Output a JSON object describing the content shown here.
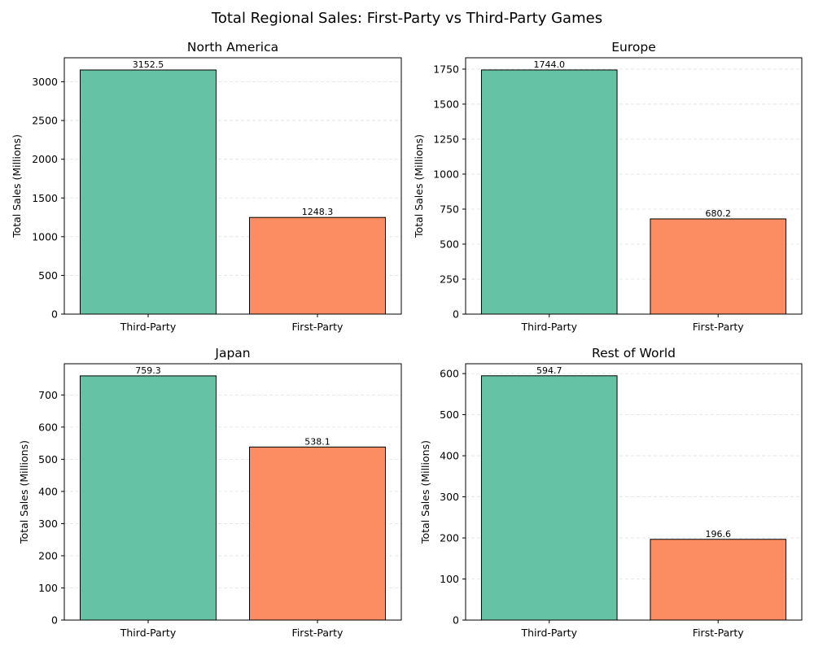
{
  "figure": {
    "title": "Total Regional Sales: First-Party vs Third-Party Games"
  },
  "chart_data": [
    {
      "type": "bar",
      "title": "North America",
      "categories": [
        "Third-Party",
        "First-Party"
      ],
      "values": [
        3152.5,
        1248.3
      ],
      "value_labels": [
        "3152.5",
        "1248.3"
      ],
      "colors": [
        "#66c2a5",
        "#fc8d62"
      ],
      "xlabel": "",
      "ylabel": "Total Sales (Millions)",
      "ylim": [
        0,
        3310
      ],
      "yticks": [
        0,
        500,
        1000,
        1500,
        2000,
        2500,
        3000
      ],
      "grid": "y-dashed"
    },
    {
      "type": "bar",
      "title": "Europe",
      "categories": [
        "Third-Party",
        "First-Party"
      ],
      "values": [
        1744.0,
        680.2
      ],
      "value_labels": [
        "1744.0",
        "680.2"
      ],
      "colors": [
        "#66c2a5",
        "#fc8d62"
      ],
      "xlabel": "",
      "ylabel": "Total Sales (Millions)",
      "ylim": [
        0,
        1831
      ],
      "yticks": [
        0,
        250,
        500,
        750,
        1000,
        1250,
        1500,
        1750
      ],
      "grid": "y-dashed"
    },
    {
      "type": "bar",
      "title": "Japan",
      "categories": [
        "Third-Party",
        "First-Party"
      ],
      "values": [
        759.3,
        538.1
      ],
      "value_labels": [
        "759.3",
        "538.1"
      ],
      "colors": [
        "#66c2a5",
        "#fc8d62"
      ],
      "xlabel": "",
      "ylabel": "Total Sales (Millions)",
      "ylim": [
        0,
        797
      ],
      "yticks": [
        0,
        100,
        200,
        300,
        400,
        500,
        600,
        700
      ],
      "grid": "y-dashed"
    },
    {
      "type": "bar",
      "title": "Rest of World",
      "categories": [
        "Third-Party",
        "First-Party"
      ],
      "values": [
        594.7,
        196.6
      ],
      "value_labels": [
        "594.7",
        "196.6"
      ],
      "colors": [
        "#66c2a5",
        "#fc8d62"
      ],
      "xlabel": "",
      "ylabel": "Total Sales (Millions)",
      "ylim": [
        0,
        624
      ],
      "yticks": [
        0,
        100,
        200,
        300,
        400,
        500,
        600
      ],
      "grid": "y-dashed"
    }
  ]
}
